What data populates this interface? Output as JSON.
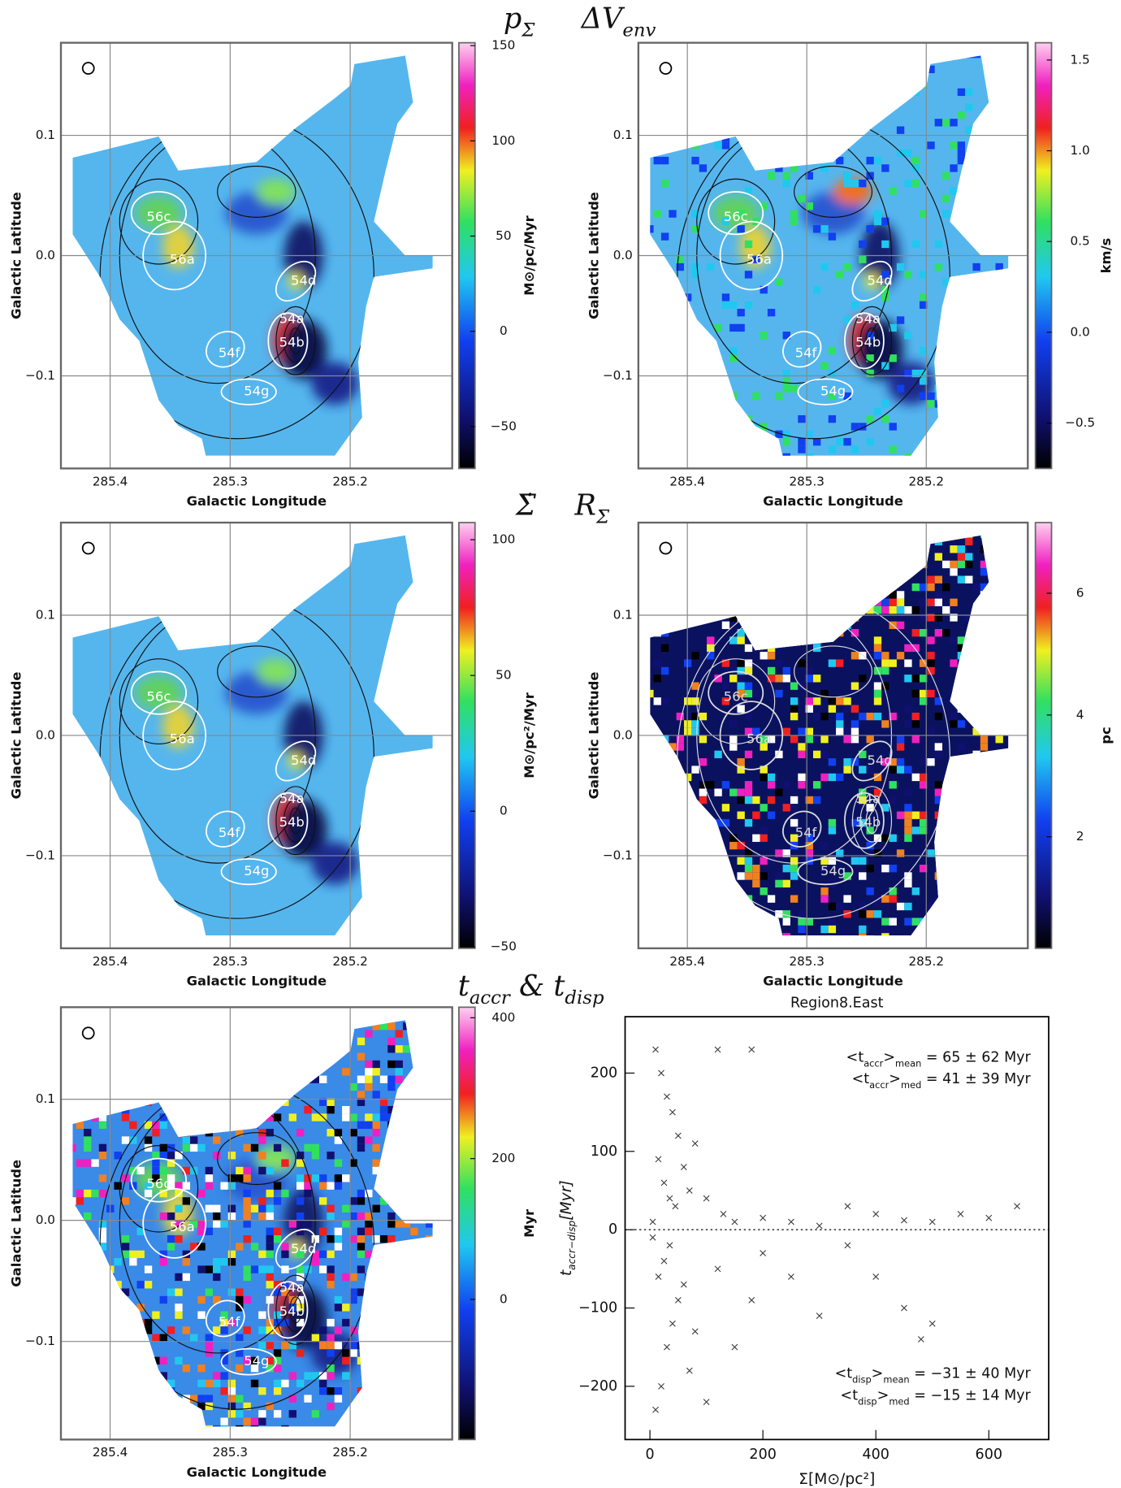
{
  "headings": [
    [
      {
        "text": "p"
      },
      {
        "sub": "Σ"
      }
    ],
    [
      {
        "text": "ΔV"
      },
      {
        "sub": "env"
      }
    ],
    [
      {
        "text": "Σ̇"
      }
    ],
    [
      {
        "text": "R"
      },
      {
        "sub": "Σ"
      }
    ],
    [
      {
        "text": "t"
      },
      {
        "sub": "accr"
      },
      {
        "text": " & t"
      },
      {
        "sub": "disp"
      }
    ]
  ],
  "chart_data": [
    {
      "type": "map",
      "xlabel": "Galactic Longitude",
      "ylabel": "Galactic Latitude",
      "xlim": [
        285.441,
        285.115
      ],
      "ylim": [
        -0.177,
        0.177
      ],
      "xticks": [
        285.4,
        285.3,
        285.2
      ],
      "yticks": [
        {
          "value": -0.1,
          "label": "−0.1"
        },
        {
          "value": 0,
          "label": "0.0"
        },
        0.1
      ],
      "grid": true,
      "colorbar": {
        "label": "M⊙/pc/Myr",
        "lim": [
          -72,
          151.5
        ],
        "ticks": [
          {
            "value": -50,
            "label": "−50"
          },
          0,
          50,
          100,
          150
        ]
      },
      "regions": [
        "56c",
        "56a",
        "54d",
        "54a",
        "54b",
        "54f",
        "54g"
      ]
    },
    {
      "type": "map",
      "xlabel": "Galactic Longitude",
      "ylabel": "Galactic Latitude",
      "xlim": [
        285.441,
        285.115
      ],
      "ylim": [
        -0.177,
        0.177
      ],
      "xticks": [
        285.4,
        285.3,
        285.2
      ],
      "yticks": [
        {
          "value": -0.1,
          "label": "−0.1"
        },
        {
          "value": 0,
          "label": "0.0"
        },
        0.1
      ],
      "grid": true,
      "colorbar": {
        "label": "km/s",
        "lim": [
          -0.75,
          1.595
        ],
        "ticks": [
          {
            "value": -0.5,
            "label": "−0.5"
          },
          {
            "value": 0,
            "label": "0.0"
          },
          0.5,
          {
            "value": 1,
            "label": "1.0"
          },
          1.5
        ]
      },
      "regions": [
        "56c",
        "56a",
        "54d",
        "54a",
        "54b",
        "54f",
        "54g"
      ]
    },
    {
      "type": "map",
      "xlabel": "Galactic Longitude",
      "ylabel": "Galactic Latitude",
      "xlim": [
        285.441,
        285.115
      ],
      "ylim": [
        -0.177,
        0.177
      ],
      "xticks": [
        285.4,
        285.3,
        285.2
      ],
      "yticks": [
        {
          "value": -0.1,
          "label": "−0.1"
        },
        {
          "value": 0,
          "label": "0.0"
        },
        0.1
      ],
      "grid": true,
      "colorbar": {
        "label": "M⊙/pc²/Myr",
        "lim": [
          -50.5,
          106.3
        ],
        "ticks": [
          {
            "value": -50,
            "label": "−50"
          },
          0,
          50,
          100
        ]
      },
      "regions": [
        "56c",
        "56a",
        "54d",
        "54a",
        "54b",
        "54f",
        "54g"
      ]
    },
    {
      "type": "map",
      "xlabel": "Galactic Longitude",
      "ylabel": "Galactic Latitude",
      "xlim": [
        285.441,
        285.115
      ],
      "ylim": [
        -0.177,
        0.177
      ],
      "xticks": [
        285.4,
        285.3,
        285.2
      ],
      "yticks": [
        {
          "value": -0.1,
          "label": "−0.1"
        },
        {
          "value": 0,
          "label": "0.0"
        },
        0.1
      ],
      "grid": true,
      "colorbar": {
        "label": "pc",
        "lim": [
          0.17,
          7.16
        ],
        "ticks": [
          2,
          4,
          6
        ]
      },
      "regions": [
        "56c",
        "56a",
        "54d",
        "54a",
        "54b",
        "54f",
        "54g"
      ]
    },
    {
      "type": "map",
      "xlabel": "Galactic Longitude",
      "ylabel": "Galactic Latitude",
      "xlim": [
        285.441,
        285.115
      ],
      "ylim": [
        -0.181,
        0.176
      ],
      "xticks": [
        285.4,
        285.3,
        285.2
      ],
      "yticks": [
        {
          "value": -0.1,
          "label": "−0.1"
        },
        {
          "value": 0,
          "label": "0.0"
        },
        0.1
      ],
      "grid": true,
      "colorbar": {
        "label": "Myr",
        "lim": [
          -199,
          415
        ],
        "ticks": [
          0,
          200,
          400
        ]
      },
      "regions": [
        "56c",
        "56a",
        "54d",
        "54a",
        "54b",
        "54f",
        "54g"
      ]
    },
    {
      "type": "scatter",
      "title": "Region8.East",
      "xlabel": "Σ[M⊙/pc²]",
      "ylabel": [
        {
          "text": "t"
        },
        {
          "sub": "accr−disp"
        },
        {
          "text": "[Myr]"
        }
      ],
      "xlim": [
        -44,
        706
      ],
      "ylim": [
        -268,
        272
      ],
      "xticks": [
        0,
        200,
        400,
        600
      ],
      "yticks": [
        {
          "value": -200,
          "label": "−200"
        },
        {
          "value": -100,
          "label": "−100"
        },
        0,
        100,
        200
      ],
      "annotations": [
        [
          {
            "text": "<t"
          },
          {
            "sub": "accr"
          },
          {
            "text": ">"
          },
          {
            "sub": "mean"
          },
          {
            "text": " = 65 ± 62 Myr"
          }
        ],
        [
          {
            "text": "<t"
          },
          {
            "sub": "accr"
          },
          {
            "text": ">"
          },
          {
            "sub": "med"
          },
          {
            "text": " = 41 ± 39 Myr"
          }
        ],
        [
          {
            "text": "<t"
          },
          {
            "sub": "disp"
          },
          {
            "text": ">"
          },
          {
            "sub": "mean"
          },
          {
            "text": " = −31 ± 40 Myr"
          }
        ],
        [
          {
            "text": "<t"
          },
          {
            "sub": "disp"
          },
          {
            "text": ">"
          },
          {
            "sub": "med"
          },
          {
            "text": " = −15 ± 14 Myr"
          }
        ]
      ],
      "x": [
        10,
        20,
        30,
        40,
        50,
        15,
        25,
        35,
        45,
        60,
        70,
        80,
        100,
        120,
        130,
        150,
        180,
        200,
        250,
        300,
        350,
        400,
        450,
        500,
        550,
        600,
        650,
        10,
        20,
        30,
        40,
        50,
        15,
        25,
        35,
        60,
        70,
        80,
        100,
        120,
        150,
        180,
        200,
        250,
        300,
        350,
        400,
        450,
        480,
        500,
        5,
        5
      ],
      "values": [
        230,
        200,
        170,
        150,
        120,
        90,
        60,
        40,
        30,
        80,
        50,
        110,
        40,
        230,
        20,
        10,
        230,
        15,
        10,
        5,
        30,
        20,
        12,
        10,
        20,
        15,
        30,
        -230,
        -200,
        -150,
        -120,
        -90,
        -60,
        -40,
        -20,
        -70,
        -180,
        -130,
        -220,
        -50,
        -150,
        -90,
        -30,
        -60,
        -110,
        -20,
        -60,
        -100,
        -140,
        -120,
        -10,
        10
      ]
    }
  ]
}
